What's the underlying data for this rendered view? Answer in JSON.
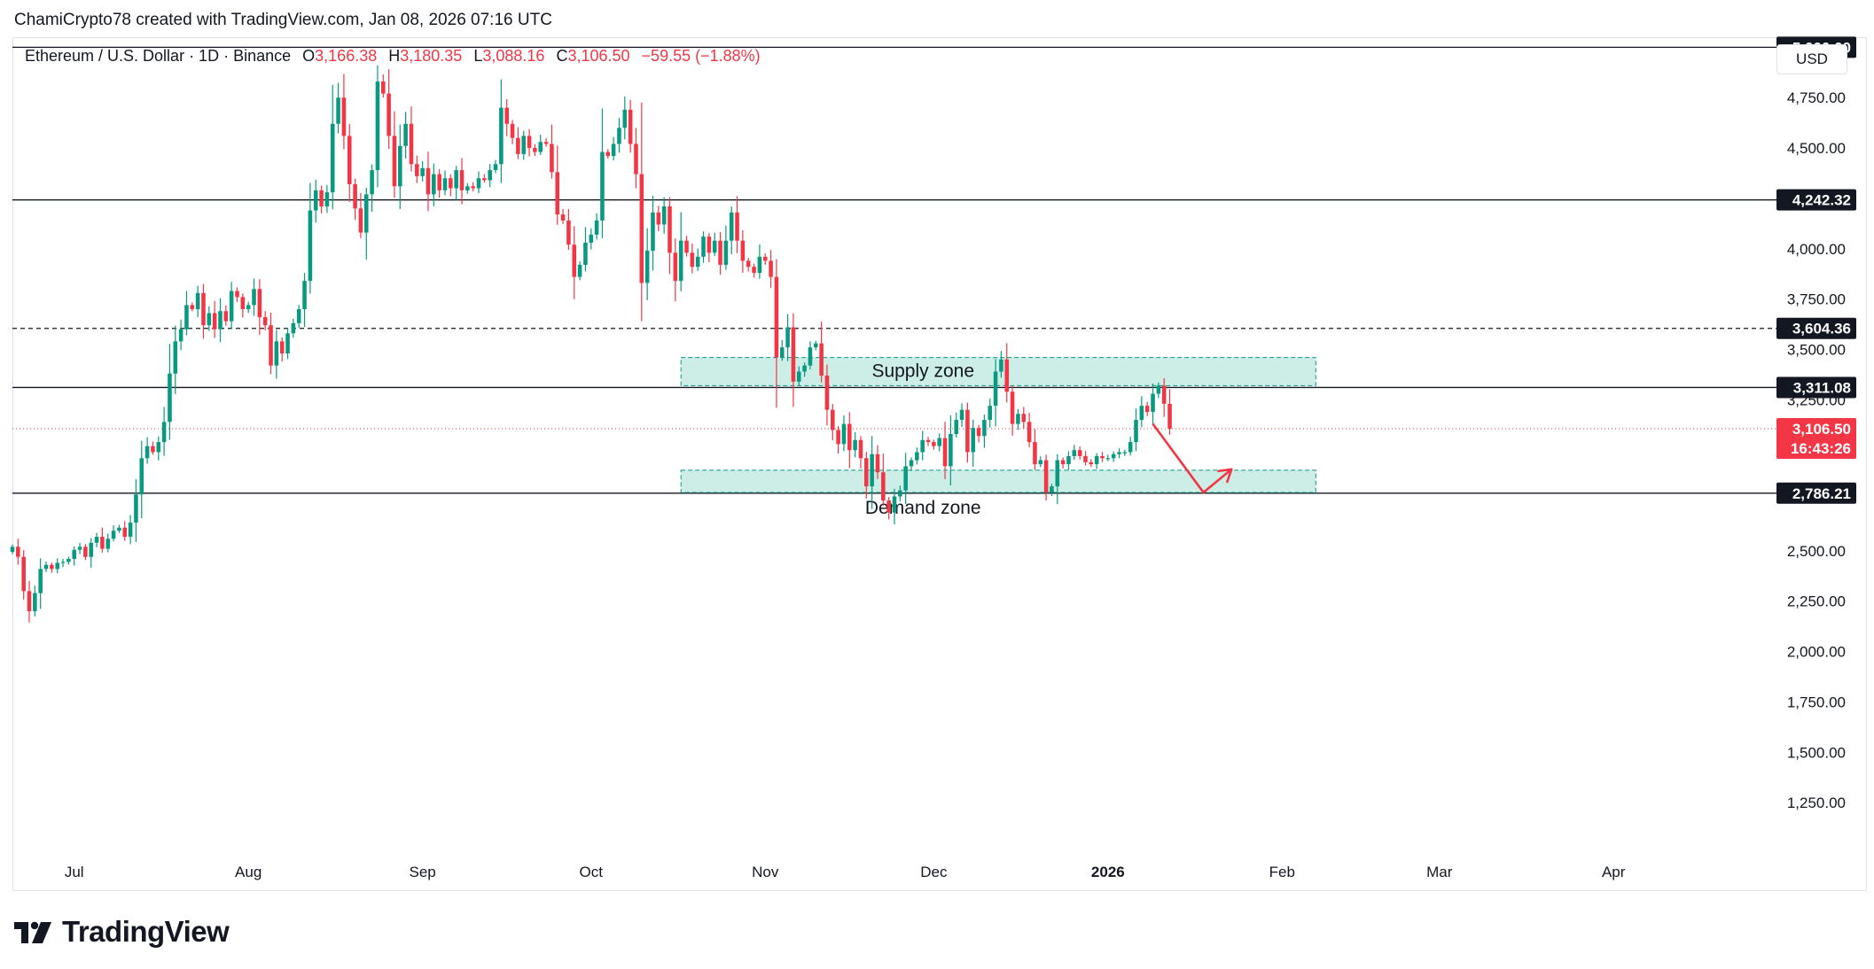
{
  "attribution": "ChamiCrypto78 created with TradingView.com, Jan 08, 2026 07:16 UTC",
  "legend": {
    "symbol": "Ethereum / U.S. Dollar · 1D · Binance",
    "open_label": "O",
    "open": "3,166.38",
    "high_label": "H",
    "high": "3,180.35",
    "low_label": "L",
    "low": "3,088.16",
    "close_label": "C",
    "close": "3,106.50",
    "change": "−59.55 (−1.88%)"
  },
  "currency_button": "USD",
  "brand": {
    "name": "TradingView"
  },
  "colors": {
    "up": "#089981",
    "down": "#f23645",
    "zone_fill": "#cdeee6",
    "zone_border": "#089981",
    "line": "#131722"
  },
  "chart_data": {
    "type": "candlestick",
    "y_axis": {
      "range": [
        1000,
        5050
      ],
      "ticks": [
        {
          "value": 1250,
          "label": "1,250.00"
        },
        {
          "value": 1500,
          "label": "1,500.00"
        },
        {
          "value": 1750,
          "label": "1,750.00"
        },
        {
          "value": 2000,
          "label": "2,000.00"
        },
        {
          "value": 2250,
          "label": "2,250.00"
        },
        {
          "value": 2500,
          "label": "2,500.00"
        },
        {
          "value": 3250,
          "label": "3,250.00"
        },
        {
          "value": 3500,
          "label": "3,500.00"
        },
        {
          "value": 3750,
          "label": "3,750.00"
        },
        {
          "value": 4000,
          "label": "4,000.00"
        },
        {
          "value": 4500,
          "label": "4,500.00"
        },
        {
          "value": 4750,
          "label": "4,750.00"
        }
      ]
    },
    "x_axis": {
      "range": [
        "2025-06-20",
        "2026-04-30"
      ],
      "ticks": [
        {
          "date": "2025-07-01",
          "label": "Jul",
          "bold": false
        },
        {
          "date": "2025-08-01",
          "label": "Aug",
          "bold": false
        },
        {
          "date": "2025-09-01",
          "label": "Sep",
          "bold": false
        },
        {
          "date": "2025-10-01",
          "label": "Oct",
          "bold": false
        },
        {
          "date": "2025-11-01",
          "label": "Nov",
          "bold": false
        },
        {
          "date": "2025-12-01",
          "label": "Dec",
          "bold": false
        },
        {
          "date": "2026-01-01",
          "label": "2026",
          "bold": true
        },
        {
          "date": "2026-02-01",
          "label": "Feb",
          "bold": false
        },
        {
          "date": "2026-03-01",
          "label": "Mar",
          "bold": false
        },
        {
          "date": "2026-04-01",
          "label": "Apr",
          "bold": false
        }
      ]
    },
    "levels": [
      {
        "value": 5000,
        "label": "5,000.00",
        "style": "solid"
      },
      {
        "value": 4242.32,
        "label": "4,242.32",
        "style": "solid"
      },
      {
        "value": 3604.36,
        "label": "3,604.36",
        "style": "dashed"
      },
      {
        "value": 3311.08,
        "label": "3,311.08",
        "style": "solid"
      },
      {
        "value": 2786.21,
        "label": "2,786.21",
        "style": "solid"
      }
    ],
    "last_price": {
      "value": 3106.5,
      "label": "3,106.50",
      "countdown": "16:43:26"
    },
    "zones": [
      {
        "name": "Supply zone",
        "from": "2025-10-17",
        "to": "2026-02-07",
        "low": 3320,
        "high": 3460
      },
      {
        "name": "Demand zone",
        "from": "2025-10-17",
        "to": "2026-02-07",
        "low": 2790,
        "high": 2900
      }
    ],
    "projection": [
      {
        "date": "2026-01-09",
        "price": 3130
      },
      {
        "date": "2026-01-18",
        "price": 2790
      },
      {
        "date": "2026-01-23",
        "price": 2905
      }
    ],
    "series": {
      "start": "2025-06-20",
      "closes": [
        2520,
        2470,
        2300,
        2200,
        2290,
        2410,
        2430,
        2410,
        2440,
        2445,
        2460,
        2505,
        2520,
        2470,
        2540,
        2570,
        2510,
        2560,
        2600,
        2615,
        2570,
        2640,
        2780,
        2960,
        3020,
        2990,
        3040,
        3140,
        3380,
        3540,
        3600,
        3720,
        3700,
        3780,
        3620,
        3680,
        3600,
        3690,
        3640,
        3790,
        3760,
        3700,
        3720,
        3800,
        3660,
        3620,
        3420,
        3540,
        3480,
        3580,
        3630,
        3700,
        3840,
        4190,
        4290,
        4210,
        4280,
        4620,
        4750,
        4560,
        4320,
        4200,
        4080,
        4270,
        4390,
        4830,
        4770,
        4560,
        4310,
        4510,
        4620,
        4420,
        4360,
        4400,
        4270,
        4370,
        4290,
        4350,
        4300,
        4390,
        4290,
        4310,
        4300,
        4350,
        4340,
        4390,
        4420,
        4700,
        4620,
        4550,
        4470,
        4560,
        4500,
        4480,
        4530,
        4520,
        4380,
        4170,
        4140,
        4020,
        3860,
        3920,
        4030,
        4070,
        4140,
        4480,
        4460,
        4520,
        4600,
        4690,
        4520,
        4370,
        3830,
        3990,
        4180,
        4120,
        4210,
        3980,
        3840,
        4040,
        3980,
        3910,
        3960,
        4060,
        3980,
        4040,
        3920,
        4040,
        4180,
        4040,
        3940,
        3910,
        3880,
        3960,
        3940,
        3860,
        3460,
        3510,
        3610,
        3340,
        3390,
        3420,
        3510,
        3530,
        3370,
        3200,
        3100,
        3030,
        3130,
        3000,
        3050,
        2960,
        2820,
        2980,
        2890,
        2750,
        2690,
        2770,
        2800,
        2920,
        2950,
        2990,
        3050,
        3040,
        3020,
        3060,
        2920,
        3080,
        3150,
        3200,
        2990,
        3110,
        3070,
        3150,
        3220,
        3390,
        3450,
        3290,
        3130,
        3180,
        3140,
        3040,
        2930,
        2950,
        2790,
        2820,
        2950,
        2930,
        2970,
        3000,
        2970,
        2940,
        2930,
        2970,
        2960,
        2960,
        2980,
        2990,
        2990,
        3040,
        3150,
        3220,
        3190,
        3280,
        3320,
        3230,
        3106.5
      ]
    }
  }
}
